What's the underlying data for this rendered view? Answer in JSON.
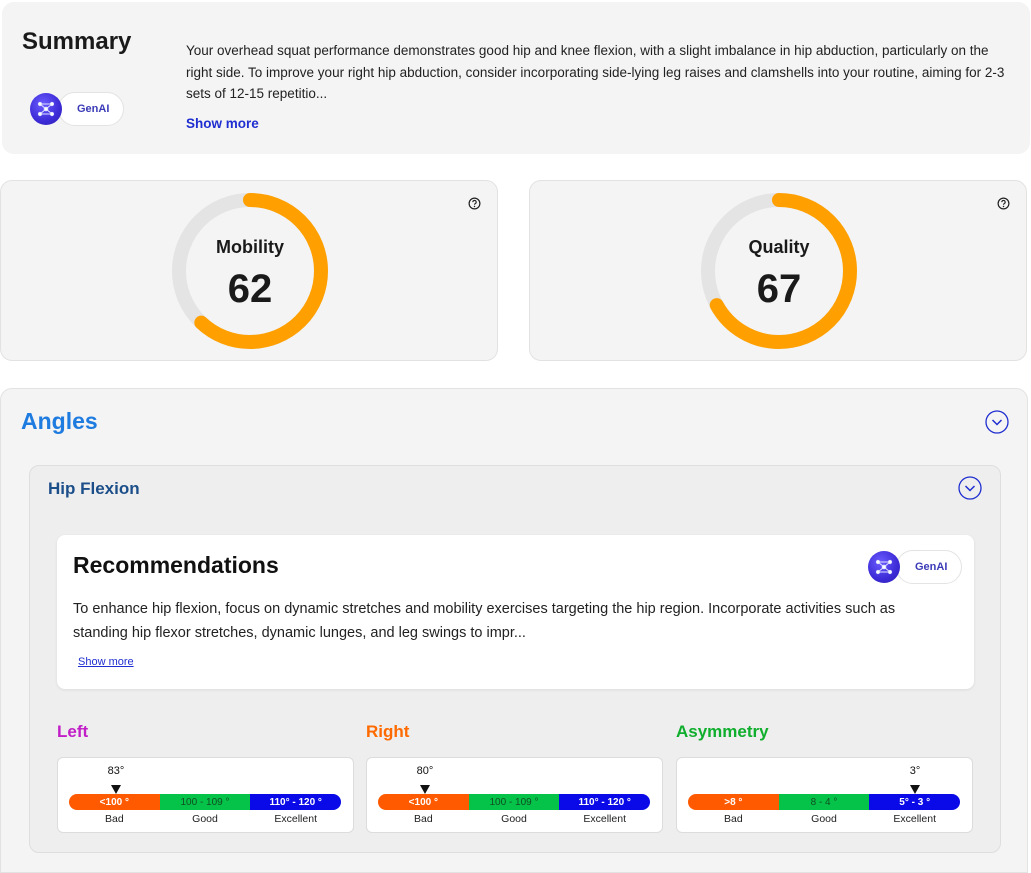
{
  "summary": {
    "title": "Summary",
    "text": "Your overhead squat performance demonstrates good hip and knee flexion, with a slight imbalance in hip abduction, particularly on the right side. To improve your right hip abduction, consider incorporating side-lying leg raises and clamshells into your routine, aiming for 2-3 sets of 12-15 repetitio...",
    "show_more": "Show more",
    "genai_label": "GenAI"
  },
  "scores": {
    "mobility": {
      "label": "Mobility",
      "value": "62",
      "fraction": 0.62
    },
    "quality": {
      "label": "Quality",
      "value": "67",
      "fraction": 0.67
    }
  },
  "angles": {
    "title": "Angles",
    "hip_flexion": {
      "title": "Hip Flexion",
      "recommendations": {
        "title": "Recommendations",
        "genai_label": "GenAI",
        "text": "To enhance hip flexion, focus on dynamic stretches and mobility exercises targeting the hip region. Incorporate activities such as standing hip flexor stretches, dynamic lunges, and leg swings to impr...",
        "show_more": "Show more"
      },
      "gauges": [
        {
          "heading": "Left",
          "value": "83°",
          "segments": [
            "<100 °",
            "100 - 109 °",
            "110° - 120 °"
          ],
          "labels": [
            "Bad",
            "Good",
            "Excellent"
          ]
        },
        {
          "heading": "Right",
          "value": "80°",
          "segments": [
            "<100 °",
            "100 - 109 °",
            "110° - 120 °"
          ],
          "labels": [
            "Bad",
            "Good",
            "Excellent"
          ]
        },
        {
          "heading": "Asymmetry",
          "value": "3°",
          "segments": [
            ">8 °",
            "8 - 4 °",
            "5° - 3 °"
          ],
          "labels": [
            "Bad",
            "Good",
            "Excellent"
          ]
        }
      ]
    }
  },
  "colors": {
    "ring_fill": "#ffa000",
    "ring_track": "#e4e4e4",
    "left_heading": "#c21ec8",
    "right_heading": "#ff6a00",
    "asymmetry_heading": "#0fae2c",
    "angles_title": "#1e7be0"
  },
  "icons": {
    "help": "question-circle-icon",
    "chevron": "chevron-down-circle-icon",
    "genai": "neural-network-icon"
  }
}
